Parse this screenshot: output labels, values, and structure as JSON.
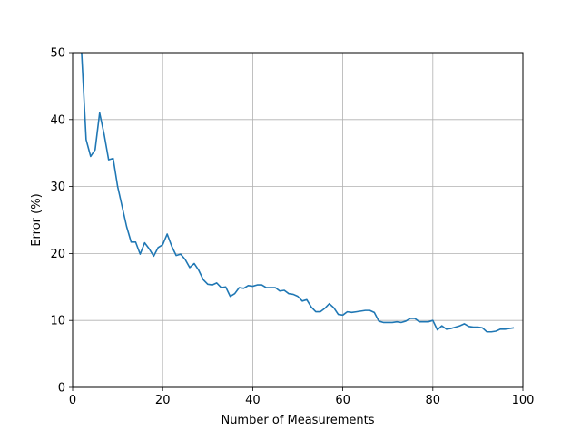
{
  "chart_data": {
    "type": "line",
    "title": "",
    "xlabel": "Number of Measurements",
    "ylabel": "Error (%)",
    "xlim": [
      0,
      100
    ],
    "ylim": [
      0,
      50
    ],
    "xticks": [
      0,
      20,
      40,
      60,
      80,
      100
    ],
    "yticks": [
      0,
      10,
      20,
      30,
      40,
      50
    ],
    "grid": true,
    "series": [
      {
        "color": "#1f77b4",
        "x": [
          2,
          3,
          4,
          5,
          6,
          7,
          8,
          9,
          10,
          11,
          12,
          13,
          14,
          15,
          16,
          17,
          18,
          19,
          20,
          21,
          22,
          23,
          24,
          25,
          26,
          27,
          28,
          29,
          30,
          31,
          32,
          33,
          34,
          35,
          36,
          37,
          38,
          39,
          40,
          41,
          42,
          43,
          44,
          45,
          46,
          47,
          48,
          49,
          50,
          51,
          52,
          53,
          54,
          55,
          56,
          57,
          58,
          59,
          60,
          61,
          62,
          63,
          64,
          65,
          66,
          67,
          68,
          69,
          70,
          71,
          72,
          73,
          74,
          75,
          76,
          77,
          78,
          79,
          80,
          81,
          82,
          83,
          84,
          85,
          86,
          87,
          88,
          89,
          90,
          91,
          92,
          93,
          94,
          95,
          96,
          97,
          98
        ],
        "y": [
          50.0,
          37.0,
          34.5,
          35.5,
          41.0,
          37.8,
          34.0,
          34.2,
          30.0,
          27.0,
          24.0,
          21.7,
          21.7,
          19.9,
          21.6,
          20.7,
          19.6,
          20.9,
          21.3,
          22.9,
          21.1,
          19.7,
          19.9,
          19.1,
          17.9,
          18.5,
          17.5,
          16.1,
          15.4,
          15.3,
          15.6,
          14.9,
          15.0,
          13.6,
          14.0,
          14.9,
          14.8,
          15.2,
          15.1,
          15.3,
          15.3,
          14.9,
          14.9,
          14.9,
          14.4,
          14.5,
          14.0,
          13.9,
          13.6,
          12.9,
          13.1,
          12.0,
          11.3,
          11.3,
          11.8,
          12.5,
          11.9,
          10.9,
          10.8,
          11.3,
          11.2,
          11.3,
          11.4,
          11.5,
          11.5,
          11.2,
          9.9,
          9.7,
          9.7,
          9.7,
          9.8,
          9.7,
          9.9,
          10.3,
          10.3,
          9.8,
          9.8,
          9.8,
          10.0,
          8.6,
          9.2,
          8.7,
          8.8,
          9.0,
          9.2,
          9.5,
          9.1,
          9.0,
          9.0,
          8.9,
          8.3,
          8.3,
          8.4,
          8.7,
          8.7,
          8.8,
          8.9
        ]
      }
    ]
  }
}
